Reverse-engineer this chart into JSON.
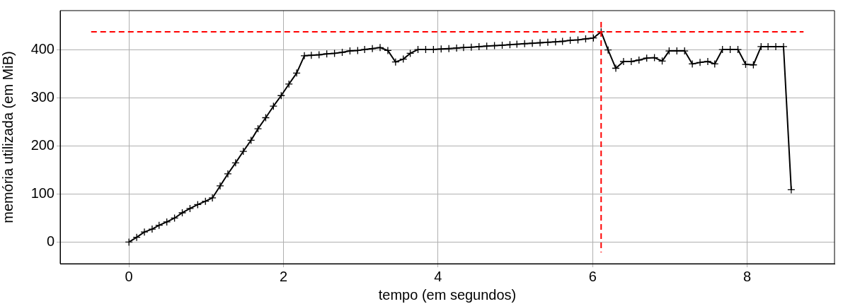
{
  "chart_data": {
    "type": "line",
    "xlabel": "tempo (em segundos)",
    "ylabel": "memória utilizada (em MiB)",
    "x": [
      0,
      0.1,
      0.2,
      0.3,
      0.39,
      0.49,
      0.59,
      0.69,
      0.79,
      0.89,
      0.99,
      1.08,
      1.18,
      1.28,
      1.38,
      1.48,
      1.58,
      1.67,
      1.77,
      1.87,
      1.97,
      2.07,
      2.17,
      2.27,
      2.36,
      2.46,
      2.56,
      2.66,
      2.76,
      2.86,
      2.96,
      3.05,
      3.15,
      3.25,
      3.35,
      3.45,
      3.55,
      3.64,
      3.74,
      3.84,
      3.94,
      4.04,
      4.14,
      4.24,
      4.33,
      4.43,
      4.53,
      4.63,
      4.73,
      4.83,
      4.93,
      5.02,
      5.12,
      5.22,
      5.32,
      5.42,
      5.52,
      5.61,
      5.71,
      5.81,
      5.91,
      6.01,
      6.11,
      6.2,
      6.3,
      6.4,
      6.5,
      6.6,
      6.7,
      6.8,
      6.9,
      6.99,
      7.09,
      7.19,
      7.29,
      7.39,
      7.49,
      7.58,
      7.68,
      7.78,
      7.88,
      7.98,
      8.08,
      8.18,
      8.27,
      8.37,
      8.47,
      8.57
    ],
    "series": [
      {
        "color": "#000000",
        "values": [
          0,
          10,
          21,
          27,
          35,
          42,
          50,
          61,
          70,
          78,
          85,
          92,
          117,
          142,
          165,
          189,
          212,
          236,
          259,
          283,
          305,
          329,
          352,
          388,
          389,
          390,
          392,
          393,
          395,
          398,
          399,
          401,
          403,
          405,
          399,
          375,
          381,
          393,
          401,
          401,
          401,
          402,
          403,
          404,
          405,
          406,
          407,
          408,
          409,
          410,
          411,
          412,
          413,
          414,
          415,
          416,
          417,
          418,
          420,
          421,
          423,
          425,
          438,
          400,
          362,
          376,
          376,
          379,
          383,
          384,
          377,
          398,
          398,
          398,
          371,
          374,
          376,
          371,
          401,
          401,
          401,
          370,
          369,
          407,
          407,
          407,
          407,
          109
        ]
      }
    ],
    "xlim": [
      -0.89,
      9.13
    ],
    "ylim": [
      -45,
      482
    ],
    "xticks": [
      0,
      2,
      4,
      6,
      8
    ],
    "yticks": [
      0,
      100,
      200,
      300,
      400
    ],
    "grid": true,
    "legend": false,
    "marker": "cross",
    "line_style": "solid",
    "ref_lines": [
      {
        "axis": "y",
        "value": 438,
        "color": "#ff0000",
        "line_style": "dashed"
      },
      {
        "axis": "x",
        "value": 6.11,
        "color": "#ff0000",
        "line_style": "dashed"
      }
    ]
  }
}
